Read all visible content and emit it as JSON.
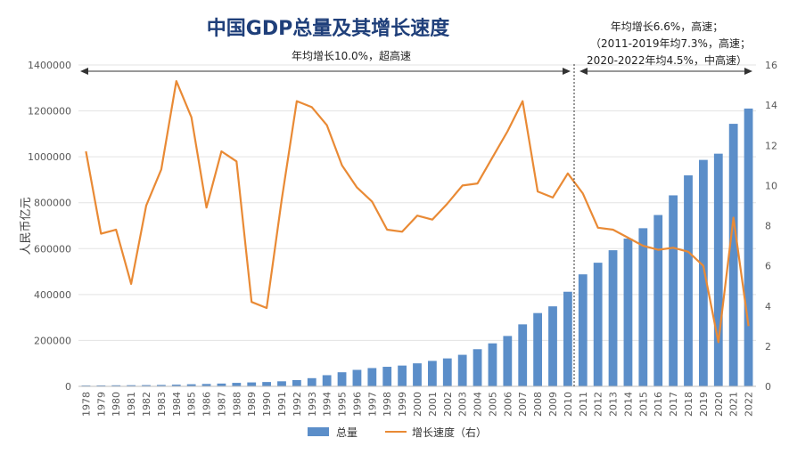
{
  "chart_data": {
    "type": "bar+line",
    "title": "中国GDP总量及其增长速度",
    "ylabel": "人民币亿元",
    "ylim": [
      0,
      1400000
    ],
    "ylim_right": [
      0,
      16
    ],
    "y_ticks": [
      "0",
      "200000",
      "400000",
      "600000",
      "800000",
      "1000000",
      "1200000",
      "1400000"
    ],
    "y_right_ticks": [
      "0",
      "2",
      "4",
      "6",
      "8",
      "10",
      "12",
      "14",
      "16"
    ],
    "categories": [
      "1978",
      "1979",
      "1980",
      "1981",
      "1982",
      "1983",
      "1984",
      "1985",
      "1986",
      "1987",
      "1988",
      "1989",
      "1990",
      "1991",
      "1992",
      "1993",
      "1994",
      "1995",
      "1996",
      "1997",
      "1998",
      "1999",
      "2000",
      "2001",
      "2002",
      "2003",
      "2004",
      "2005",
      "2006",
      "2007",
      "2008",
      "2009",
      "2010",
      "2011",
      "2012",
      "2013",
      "2014",
      "2015",
      "2016",
      "2017",
      "2018",
      "2019",
      "2020",
      "2021",
      "2022"
    ],
    "series": [
      {
        "name": "总量",
        "type": "bar",
        "axis": "left",
        "color": "#5b8ec9",
        "values": [
          3679,
          4101,
          4588,
          4936,
          5373,
          6021,
          7279,
          9099,
          10376,
          12175,
          15180,
          17180,
          18873,
          22006,
          27195,
          35673,
          48638,
          61340,
          71814,
          79715,
          85196,
          90564,
          100280,
          110863,
          121717,
          137422,
          161840,
          187319,
          219439,
          270092,
          319245,
          348518,
          412119,
          487940,
          538580,
          592963,
          643563,
          688858,
          746395,
          832036,
          919281,
          986515,
          1013567,
          1143670,
          1210207
        ]
      },
      {
        "name": "增长速度（右）",
        "type": "line",
        "axis": "right",
        "color": "#e98a35",
        "values": [
          11.7,
          7.6,
          7.8,
          5.1,
          9.0,
          10.8,
          15.2,
          13.4,
          8.9,
          11.7,
          11.2,
          4.2,
          3.9,
          9.3,
          14.2,
          13.9,
          13.0,
          11.0,
          9.9,
          9.2,
          7.8,
          7.7,
          8.5,
          8.3,
          9.1,
          10.0,
          10.1,
          11.4,
          12.7,
          14.2,
          9.7,
          9.4,
          10.6,
          9.6,
          7.9,
          7.8,
          7.4,
          7.0,
          6.8,
          6.9,
          6.7,
          6.0,
          2.2,
          8.4,
          3.0
        ]
      }
    ],
    "annotations": {
      "left": "年均增长10.0%，超高速",
      "right_line1": "年均增长6.6%，高速；",
      "right_line2": "（2011-2019年均7.3%，高速；",
      "right_line3": "2020-2022年均4.5%，中高速）"
    },
    "legend_position": "bottom-center",
    "grid": true
  }
}
